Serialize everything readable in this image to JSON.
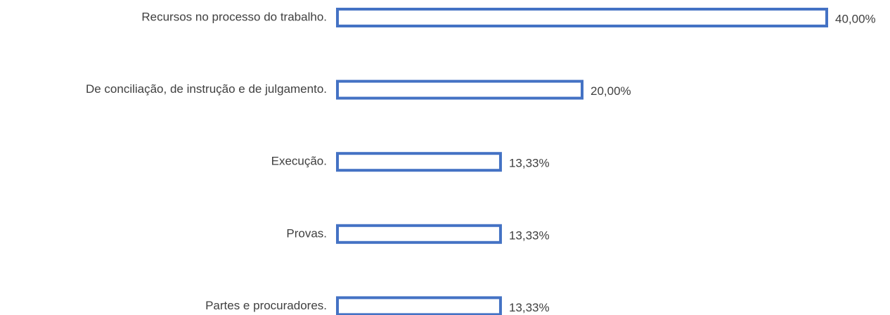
{
  "chart_data": {
    "type": "bar",
    "orientation": "horizontal",
    "categories": [
      "Recursos no processo do trabalho.",
      "De conciliação, de instrução e de julgamento.",
      "Execução.",
      "Provas.",
      "Partes e procuradores."
    ],
    "values": [
      40,
      20,
      13.33,
      13.33,
      13.33
    ],
    "value_labels": [
      "40,00%",
      "20,00%",
      "13,33%",
      "13,33%",
      "13,33%"
    ],
    "color": "#4472c4"
  }
}
